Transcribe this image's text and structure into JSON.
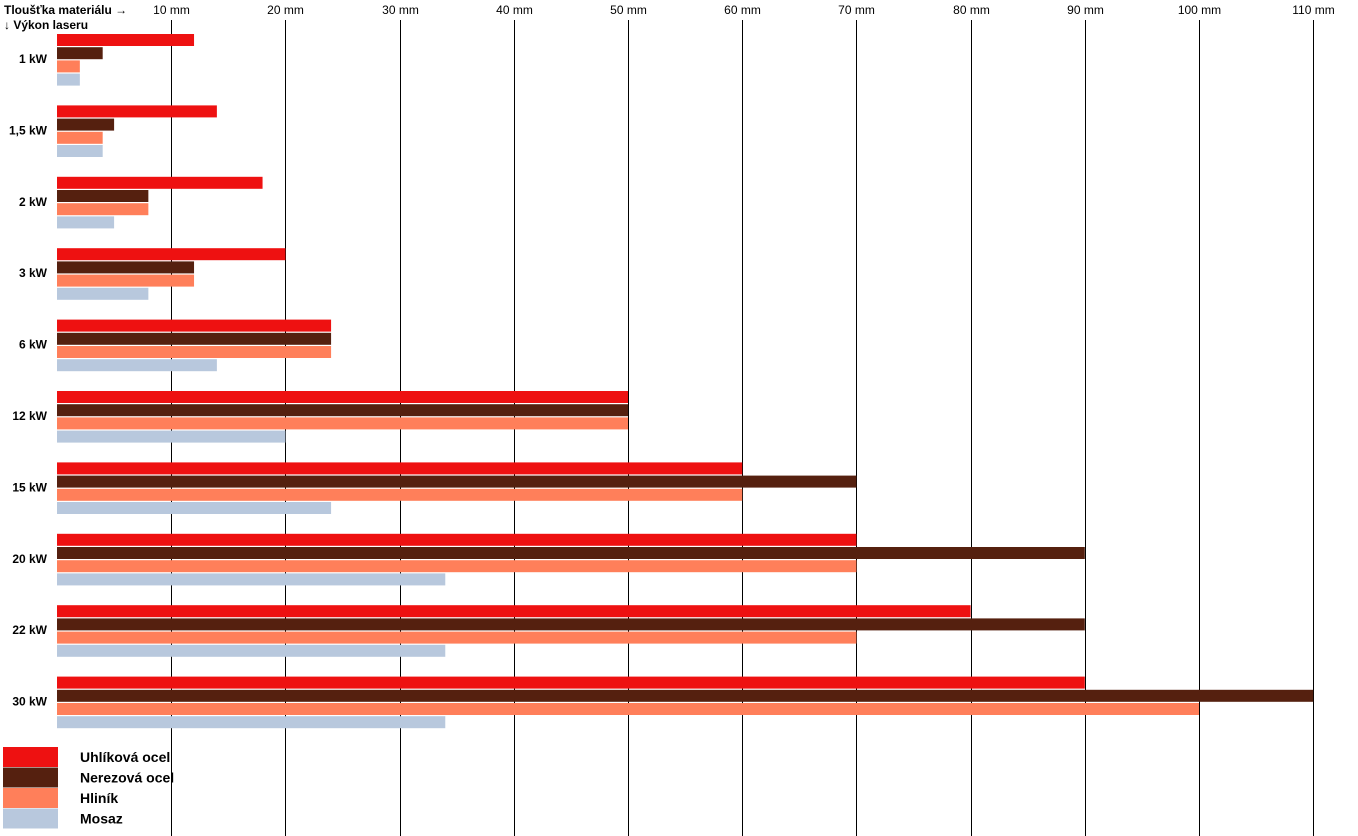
{
  "chart_data": {
    "type": "bar",
    "orientation": "horizontal",
    "x_axis_label": "Tloušťka materiálu →",
    "y_axis_label": "↓ Výkon laseru",
    "xlim": [
      0,
      110
    ],
    "ticks": [
      10,
      20,
      30,
      40,
      50,
      60,
      70,
      80,
      90,
      100,
      110
    ],
    "tick_labels": [
      "10 mm",
      "20 mm",
      "30 mm",
      "40 mm",
      "50 mm",
      "60 mm",
      "70 mm",
      "80 mm",
      "90 mm",
      "100 mm",
      "110 mm"
    ],
    "grid": true,
    "legend_position": "bottom-left",
    "categories": [
      "1 kW",
      "1,5 kW",
      "2 kW",
      "3 kW",
      "6 kW",
      "12 kW",
      "15 kW",
      "20 kW",
      "22 kW",
      "30 kW"
    ],
    "series": [
      {
        "name": "Uhlíková ocel",
        "color": "#ee1111",
        "values": [
          12,
          14,
          18,
          20,
          24,
          50,
          60,
          70,
          80,
          90
        ]
      },
      {
        "name": "Nerezová ocel",
        "color": "#55200f",
        "values": [
          4,
          5,
          8,
          12,
          24,
          50,
          70,
          90,
          90,
          110
        ]
      },
      {
        "name": "Hliník",
        "color": "#ff7f5a",
        "values": [
          2,
          4,
          8,
          12,
          24,
          50,
          60,
          70,
          70,
          100
        ]
      },
      {
        "name": "Mosaz",
        "color": "#b8c8dd",
        "values": [
          2,
          4,
          5,
          8,
          14,
          20,
          24,
          34,
          34,
          34
        ]
      }
    ]
  }
}
